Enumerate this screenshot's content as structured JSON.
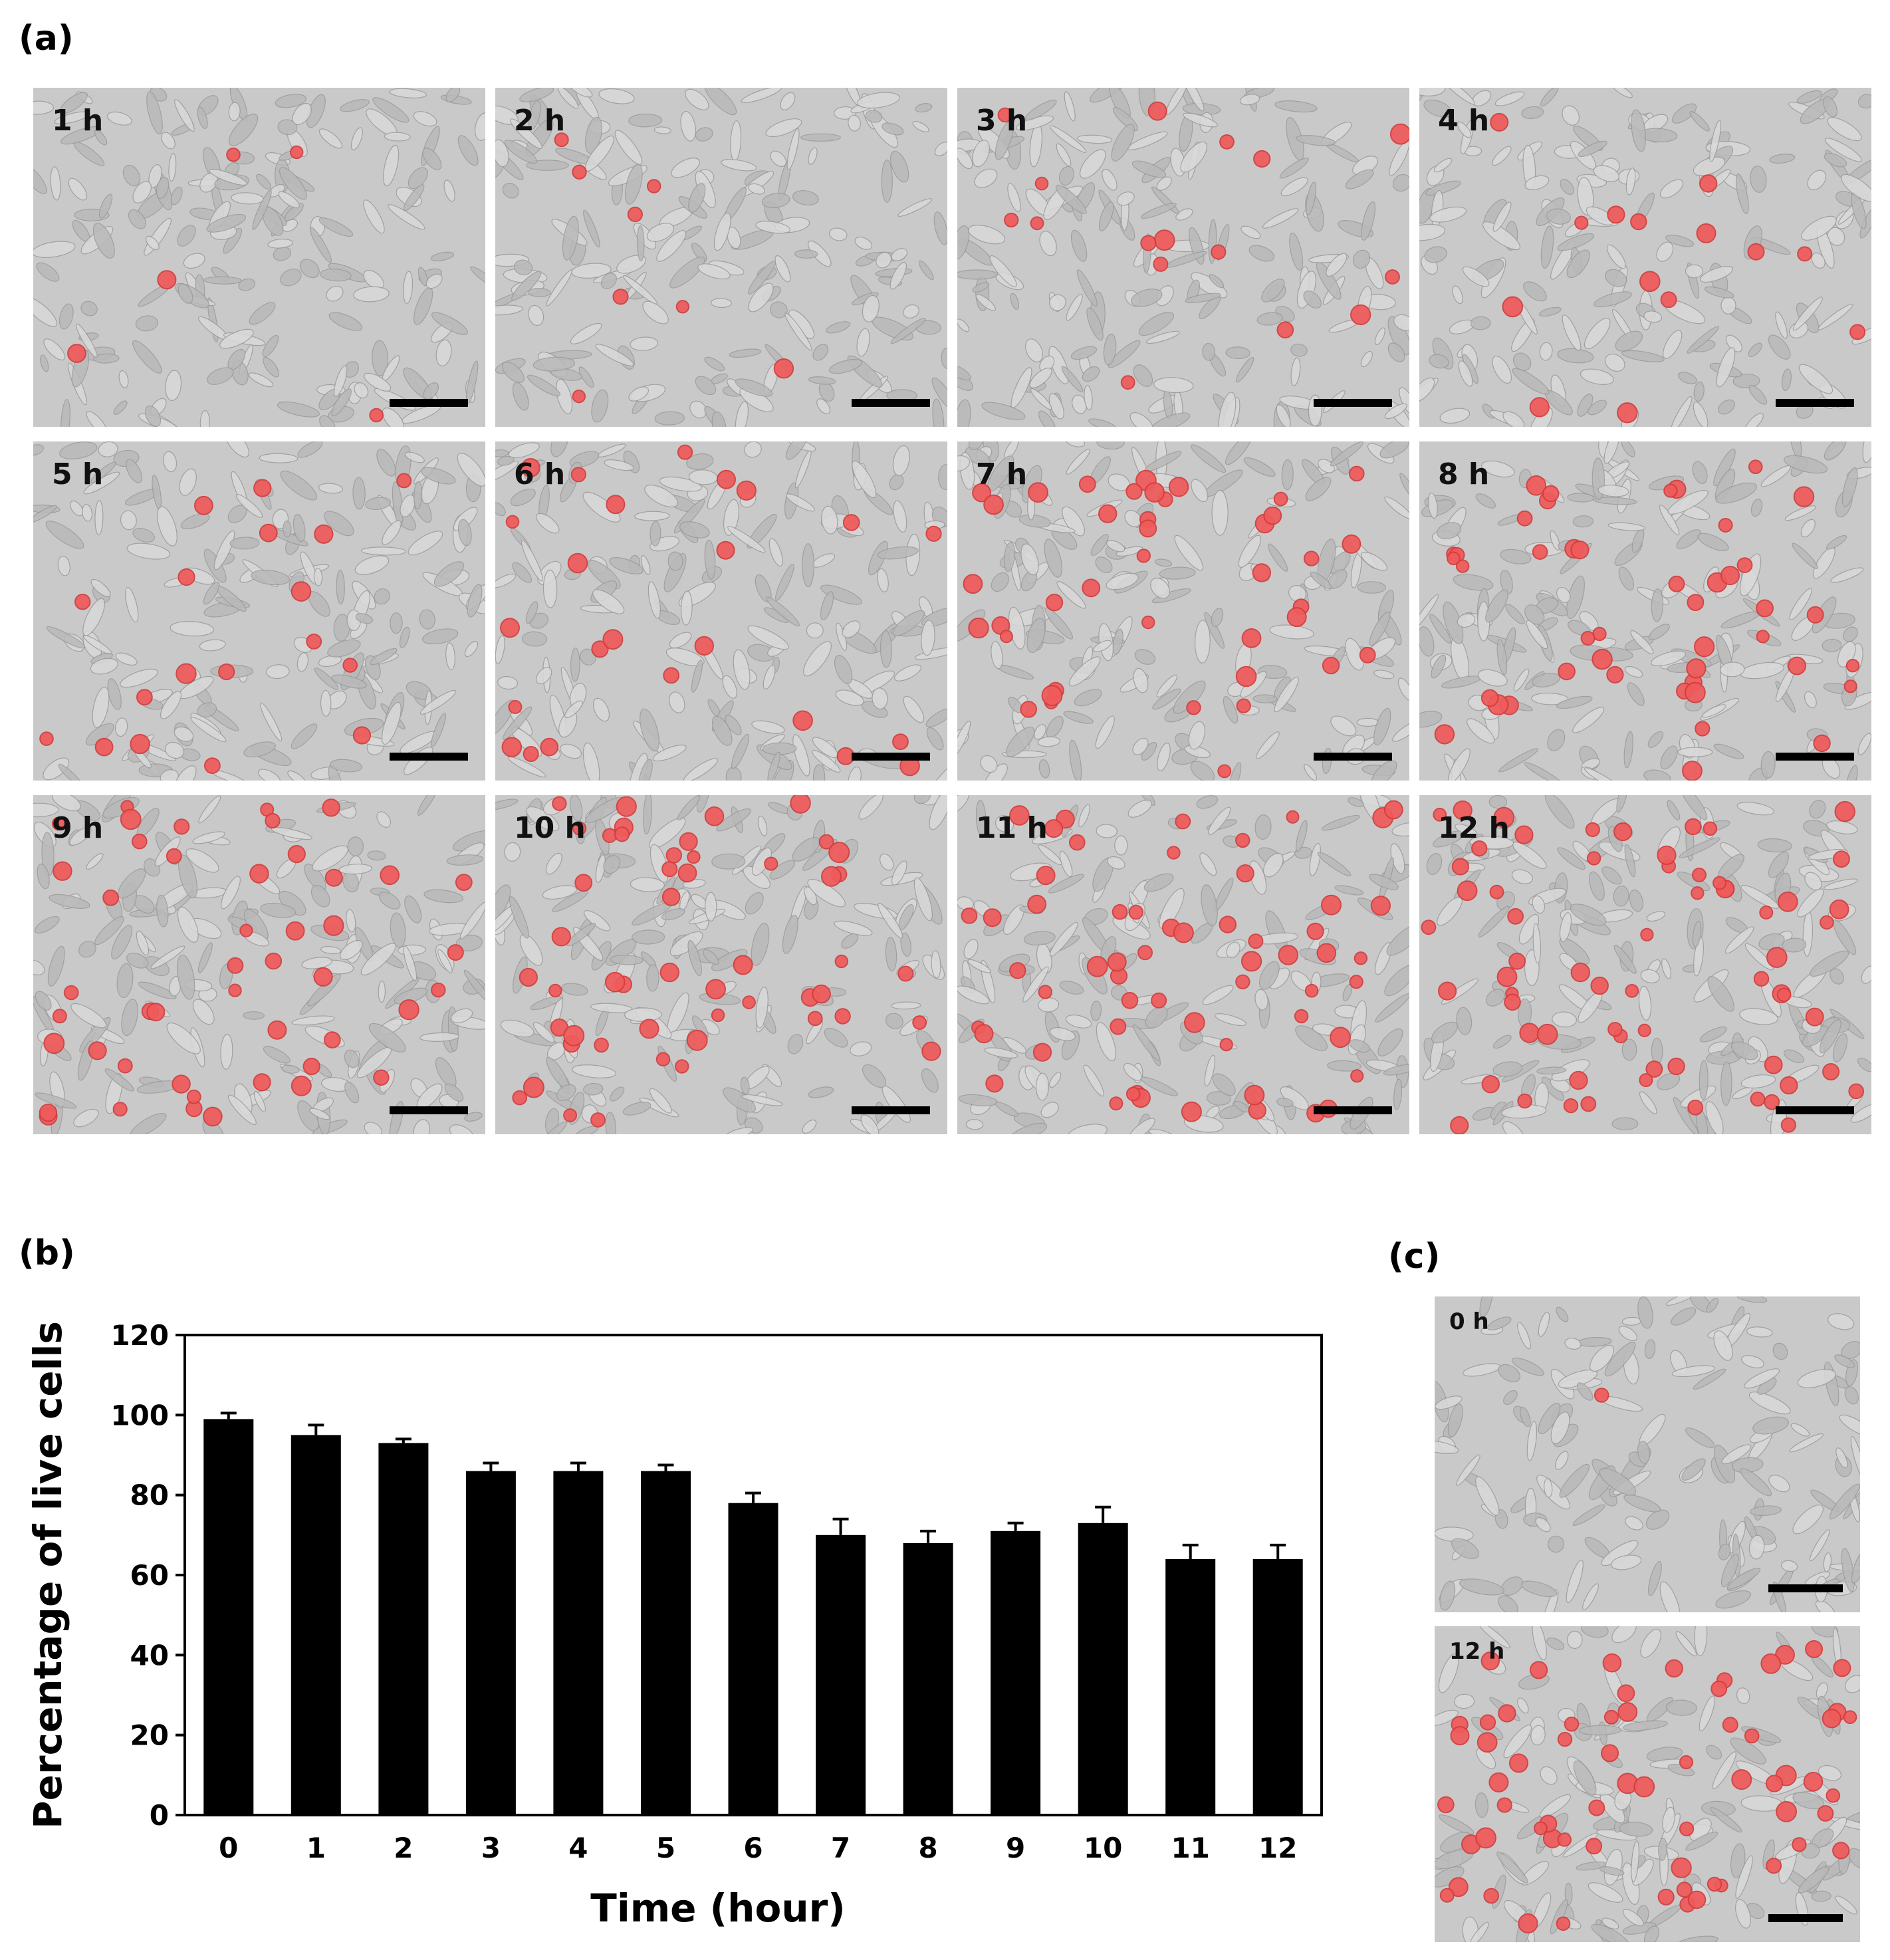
{
  "panels": {
    "a": "(a)",
    "b": "(b)",
    "c": "(c)"
  },
  "micrographs_a": [
    {
      "label": "1 h",
      "red_cells": 5
    },
    {
      "label": "2 h",
      "red_cells": 8
    },
    {
      "label": "3 h",
      "red_cells": 16
    },
    {
      "label": "4 h",
      "red_cells": 14
    },
    {
      "label": "5 h",
      "red_cells": 18
    },
    {
      "label": "6 h",
      "red_cells": 24
    },
    {
      "label": "7 h",
      "red_cells": 40
    },
    {
      "label": "8 h",
      "red_cells": 44
    },
    {
      "label": "9 h",
      "red_cells": 46
    },
    {
      "label": "10 h",
      "red_cells": 50
    },
    {
      "label": "11 h",
      "red_cells": 58
    },
    {
      "label": "12 h",
      "red_cells": 64
    }
  ],
  "micrographs_c": [
    {
      "label": "0 h",
      "red_cells": 1
    },
    {
      "label": "12 h",
      "red_cells": 64
    }
  ],
  "colors": {
    "dead_cell_stain": "#f05a5a",
    "micrograph_background": "#c9c9c9",
    "bars": "#000000"
  },
  "chart_data": {
    "type": "bar",
    "categories": [
      "0",
      "1",
      "2",
      "3",
      "4",
      "5",
      "6",
      "7",
      "8",
      "9",
      "10",
      "11",
      "12"
    ],
    "values": [
      99,
      95,
      93,
      86,
      86,
      86,
      78,
      70,
      68,
      71,
      73,
      64,
      64
    ],
    "errors": [
      1.5,
      2.5,
      1.0,
      2.0,
      2.0,
      1.5,
      2.5,
      4.0,
      3.0,
      2.0,
      4.0,
      3.5,
      3.5
    ],
    "xlabel": "Time (hour)",
    "ylabel": "Percentage of live cells",
    "ylim": [
      0,
      120
    ],
    "yticks": [
      "0",
      "20",
      "40",
      "60",
      "80",
      "100",
      "120"
    ],
    "grid": false
  }
}
